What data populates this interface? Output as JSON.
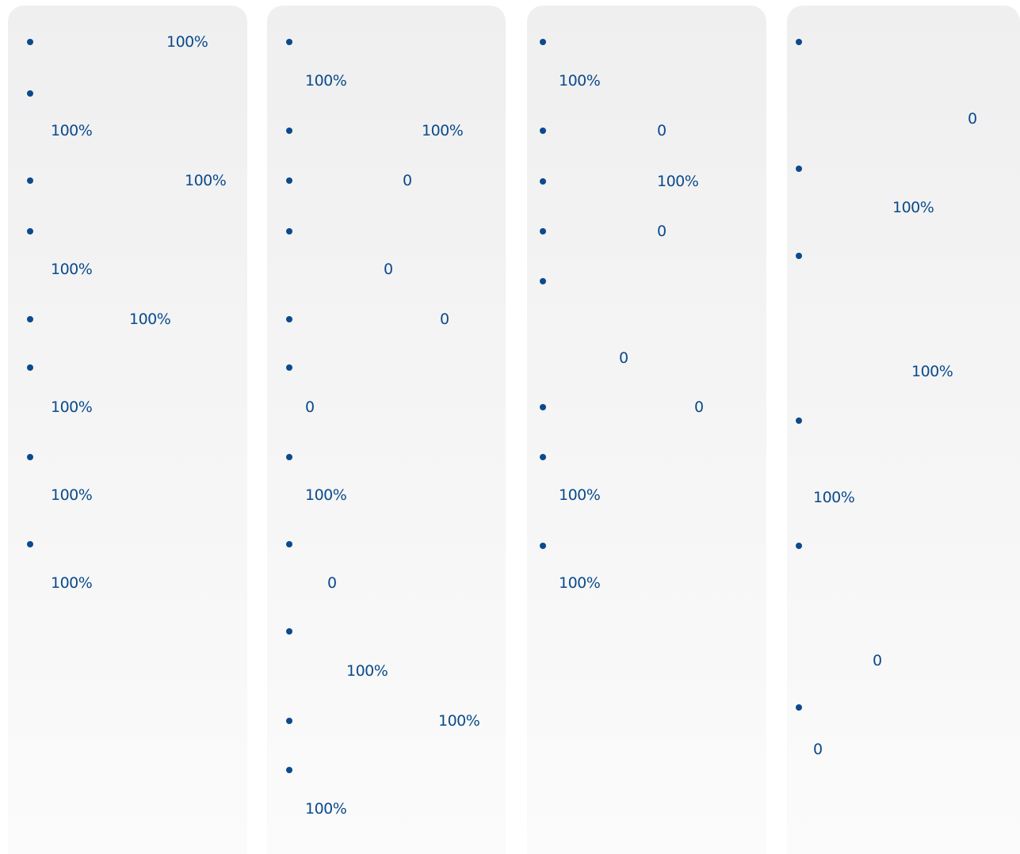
{
  "columns": [
    {
      "items": [
        "100%",
        "100%",
        "100%",
        "100%",
        "100%",
        "100%",
        "100%",
        "100%"
      ]
    },
    {
      "items": [
        "100%",
        "100%",
        "0",
        "0",
        "0",
        "0",
        "100%",
        "0",
        "100%",
        "100%",
        "100%"
      ]
    },
    {
      "items": [
        "100%",
        "0",
        "100%",
        "0",
        "0",
        "0",
        "100%",
        "100%"
      ]
    },
    {
      "items": [
        "0",
        "100%",
        "100%",
        "100%",
        "0",
        "0"
      ]
    }
  ]
}
